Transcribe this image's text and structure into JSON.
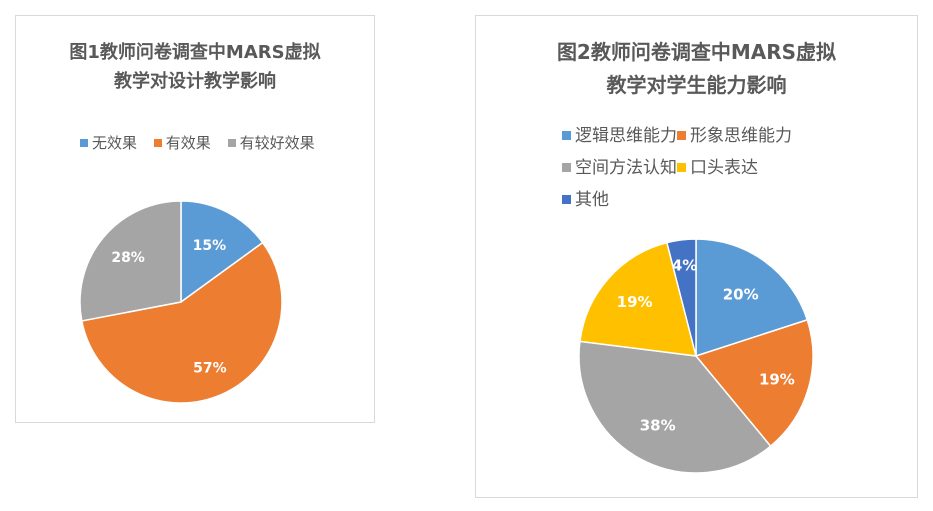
{
  "chart_data": [
    {
      "type": "pie",
      "title": "图1教师问卷调查中MARS虚拟教学对设计教学影响",
      "title_lines": [
        "图1教师问卷调查中MARS虚拟",
        "教学对设计教学影响"
      ],
      "legend_position": "top",
      "series": [
        {
          "name": "无效果",
          "value": 15,
          "label": "15%",
          "color": "#5b9bd5"
        },
        {
          "name": "有效果",
          "value": 57,
          "label": "57%",
          "color": "#ed7d31"
        },
        {
          "name": "有较好效果",
          "value": 28,
          "label": "28%",
          "color": "#a5a5a5"
        }
      ]
    },
    {
      "type": "pie",
      "title": "图2教师问卷调查中MARS虚拟教学对学生能力影响",
      "title_lines": [
        "图2教师问卷调查中MARS虚拟",
        "教学对学生能力影响"
      ],
      "legend_position": "top",
      "series": [
        {
          "name": "逻辑思维能力",
          "value": 20,
          "label": "20%",
          "color": "#5b9bd5"
        },
        {
          "name": "形象思维能力",
          "value": 19,
          "label": "19%",
          "color": "#ed7d31"
        },
        {
          "name": "空间方法认知",
          "value": 38,
          "label": "38%",
          "color": "#a5a5a5"
        },
        {
          "name": "口头表达",
          "value": 19,
          "label": "19%",
          "color": "#ffc000"
        },
        {
          "name": "其他",
          "value": 4,
          "label": "4%",
          "color": "#4472c4"
        }
      ]
    }
  ]
}
